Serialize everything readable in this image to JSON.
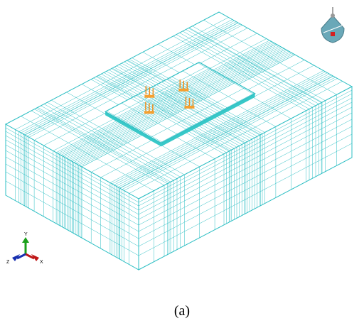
{
  "caption": "(a)",
  "triad": {
    "y": "Y",
    "z": "Z",
    "x": "X"
  }
}
